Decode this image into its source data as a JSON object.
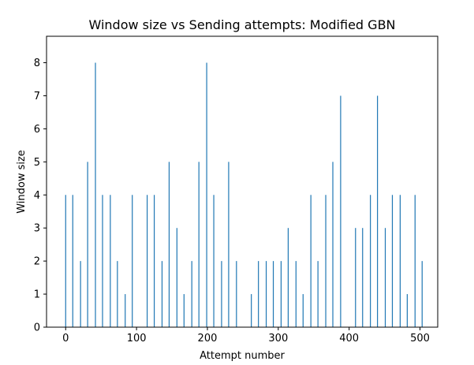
{
  "chart_data": {
    "type": "bar",
    "title": "Window size vs Sending attempts: Modified GBN",
    "xlabel": "Attempt number",
    "ylabel": "Window size",
    "xlim": [
      -27,
      525
    ],
    "ylim": [
      0,
      8.8
    ],
    "xticks": [
      0,
      100,
      200,
      300,
      400,
      500
    ],
    "yticks": [
      0,
      1,
      2,
      3,
      4,
      5,
      6,
      7,
      8
    ],
    "grid": false,
    "bar_color": "#1f77b4",
    "series": [
      {
        "x": [
          0,
          10,
          21,
          31,
          42,
          52,
          63,
          73,
          84,
          94,
          115,
          125,
          136,
          146,
          157,
          167,
          178,
          188,
          199,
          209,
          220,
          230,
          241,
          262,
          272,
          283,
          293,
          304,
          314,
          325,
          335,
          346,
          356,
          367,
          377,
          388,
          409,
          419,
          430,
          440,
          451,
          461,
          472,
          482,
          493,
          503
        ],
        "values": [
          4,
          4,
          2,
          5,
          8,
          4,
          4,
          2,
          1,
          4,
          4,
          4,
          2,
          5,
          3,
          1,
          2,
          5,
          8,
          4,
          2,
          5,
          2,
          1,
          2,
          2,
          2,
          2,
          3,
          2,
          1,
          4,
          2,
          4,
          5,
          7,
          3,
          3,
          4,
          7,
          3,
          4,
          4,
          1,
          4,
          2
        ]
      }
    ]
  }
}
